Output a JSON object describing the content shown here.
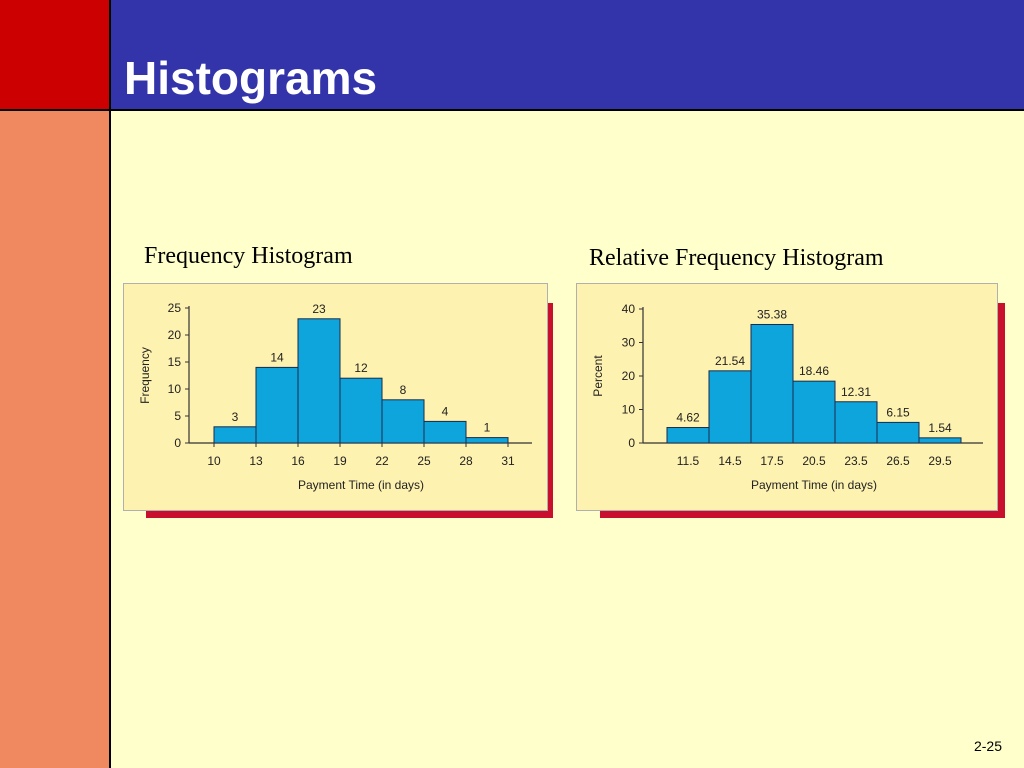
{
  "slide": {
    "title": "Histograms",
    "page_number": "2-25",
    "colors": {
      "corner": "#cc0000",
      "title_bar": "#3333aa",
      "sidebar": "#f08860",
      "background": "#ffffcc",
      "panel": "#fdf2b0",
      "panel_shadow": "#c8102e",
      "bar_fill": "#0ea5dc"
    }
  },
  "left_chart": {
    "caption": "Frequency Histogram"
  },
  "right_chart": {
    "caption": "Relative Frequency Histogram"
  },
  "chart_data": [
    {
      "type": "bar",
      "title": "Frequency Histogram",
      "xlabel": "Payment Time (in days)",
      "ylabel": "Frequency",
      "bin_edges": [
        10,
        13,
        16,
        19,
        22,
        25,
        28,
        31
      ],
      "x_tick_labels": [
        "10",
        "13",
        "16",
        "19",
        "22",
        "25",
        "28",
        "31"
      ],
      "values": [
        3,
        14,
        23,
        12,
        8,
        4,
        1
      ],
      "value_labels": [
        "3",
        "14",
        "23",
        "12",
        "8",
        "4",
        "1"
      ],
      "y_ticks": [
        0,
        5,
        10,
        15,
        20,
        25
      ],
      "ylim": [
        0,
        25
      ],
      "grid": false
    },
    {
      "type": "bar",
      "title": "Relative Frequency Histogram",
      "xlabel": "Payment Time (in days)",
      "ylabel": "Percent",
      "categories": [
        "11.5",
        "14.5",
        "17.5",
        "20.5",
        "23.5",
        "26.5",
        "29.5"
      ],
      "values": [
        4.62,
        21.54,
        35.38,
        18.46,
        12.31,
        6.15,
        1.54
      ],
      "value_labels": [
        "4.62",
        "21.54",
        "35.38",
        "18.46",
        "12.31",
        "6.15",
        "1.54"
      ],
      "y_ticks": [
        0,
        10,
        20,
        30,
        40
      ],
      "ylim": [
        0,
        40
      ],
      "grid": false
    }
  ]
}
